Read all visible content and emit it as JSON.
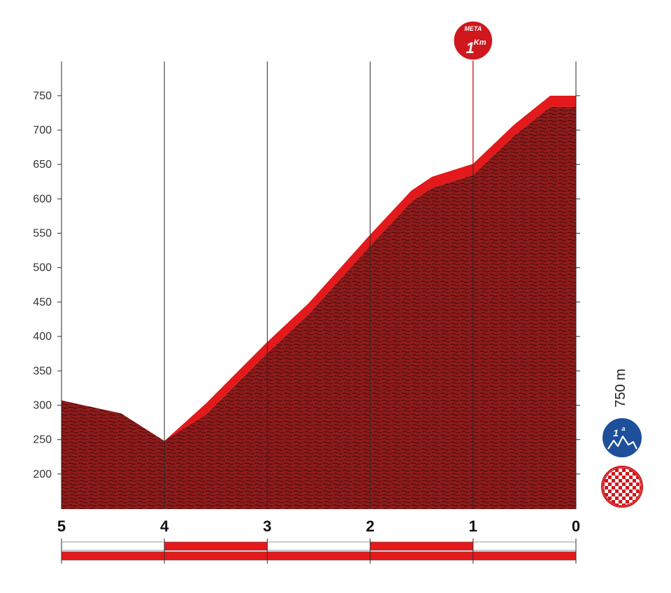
{
  "chart_data": {
    "type": "area",
    "title": "",
    "xlabel": "",
    "ylabel": "",
    "xlim": [
      5,
      0
    ],
    "ylim": [
      150,
      800
    ],
    "yticks": [
      200,
      250,
      300,
      350,
      400,
      450,
      500,
      550,
      600,
      650,
      700,
      750
    ],
    "ytick_labels": [
      "200",
      "250",
      "300",
      "350",
      "400",
      "450",
      "500",
      "550",
      "600",
      "650",
      "700",
      "750"
    ],
    "xticks": [
      5,
      4,
      3,
      2,
      1,
      0
    ],
    "xtick_labels": [
      "5",
      "4",
      "3",
      "2",
      "1",
      "0"
    ],
    "highlight_xtick": 1,
    "grid": "vertical lines at each km",
    "series": [
      {
        "x": [
          5,
          4.42,
          4.0,
          3.6,
          3.0,
          2.6,
          2.0,
          1.6,
          1.4,
          1.0,
          0.6,
          0.25,
          0.0
        ],
        "y": [
          307,
          288,
          248,
          302,
          392,
          448,
          548,
          612,
          632,
          651,
          708,
          750,
          750
        ]
      }
    ],
    "colors": {
      "profile_fill": "#8e1b1b",
      "profile_band": "#e3191b",
      "grid_line": "#2a2a2a",
      "meta_marker": "#d0171d",
      "highlight_tick": "#d0171d",
      "category_badge": "#1d4f9b",
      "finish_check": "#d0171d"
    },
    "annotations": [
      {
        "type": "finish-marker",
        "at_x": 1,
        "word": "META",
        "number": "1",
        "unit": "Km"
      }
    ],
    "side_panel": {
      "summit_altitude_label": "750 m",
      "category_badge_text": "1",
      "category_badge_sup": "a",
      "category_icon": "mountain-icon",
      "finish_icon": "checkered-flag-icon"
    },
    "progress_bar": {
      "segments": 5,
      "pattern": [
        "white-red",
        "red-red",
        "white-red",
        "red-red",
        "white-red"
      ]
    }
  }
}
